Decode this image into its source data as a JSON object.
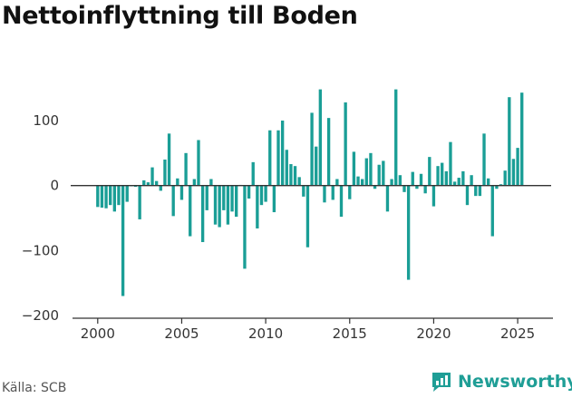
{
  "title": "Nettoinflyttning till Boden",
  "source": "Källa: SCB",
  "brand": {
    "name": "Newsworthy"
  },
  "colors": {
    "bar": "#1a9e96",
    "axis": "#333333",
    "brand": "#1f9e96"
  },
  "chart_data": {
    "type": "bar",
    "title": "Nettoinflyttning till Boden",
    "x_ticks": [
      2000,
      2005,
      2010,
      2015,
      2020,
      2025
    ],
    "y_ticks": [
      100,
      0,
      -100,
      -200
    ],
    "y_tick_labels": [
      "100",
      "0",
      "−100",
      "−200"
    ],
    "xlim": [
      1998.5,
      2027.1
    ],
    "ylim": [
      -200,
      160
    ],
    "grid": false,
    "bars_per_year": 4,
    "x_start": 2000.0,
    "values": [
      -33,
      -34,
      -35,
      -30,
      -40,
      -30,
      -170,
      -25,
      -1,
      -2,
      -52,
      8,
      5,
      28,
      7,
      -8,
      40,
      80,
      -47,
      11,
      -22,
      50,
      -78,
      10,
      70,
      -87,
      -38,
      10,
      -60,
      -64,
      -38,
      -60,
      -40,
      -48,
      1,
      -128,
      -20,
      36,
      -66,
      -30,
      -25,
      85,
      -41,
      85,
      100,
      55,
      33,
      30,
      13,
      -17,
      -95,
      112,
      60,
      148,
      -26,
      104,
      -22,
      10,
      -48,
      128,
      -21,
      52,
      14,
      10,
      42,
      50,
      -5,
      32,
      38,
      -40,
      10,
      148,
      16,
      -10,
      -145,
      21,
      -5,
      18,
      -12,
      44,
      -32,
      30,
      35,
      22,
      67,
      6,
      12,
      22,
      -30,
      16,
      -16,
      -16,
      80,
      11,
      -78,
      -5,
      2,
      23,
      136,
      41,
      58,
      143
    ]
  }
}
